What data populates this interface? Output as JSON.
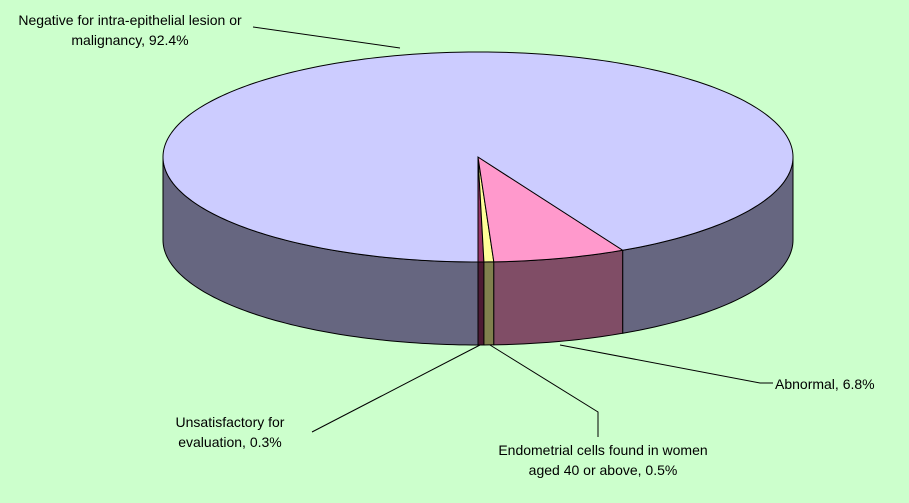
{
  "chart_data": {
    "type": "pie3d",
    "labels": [
      "Unsatisfactory for evaluation, 0.3%",
      "Endometrial cells found in women aged 40 or above, 0.5%",
      "Abnormal, 6.8%",
      "Negative for intra-epithelial lesion or malignancy, 92.4%"
    ],
    "values": [
      0.3,
      0.5,
      6.8,
      92.4
    ],
    "colors": [
      "#993366",
      "#ffff99",
      "#ff99cc",
      "#ccccff"
    ]
  }
}
